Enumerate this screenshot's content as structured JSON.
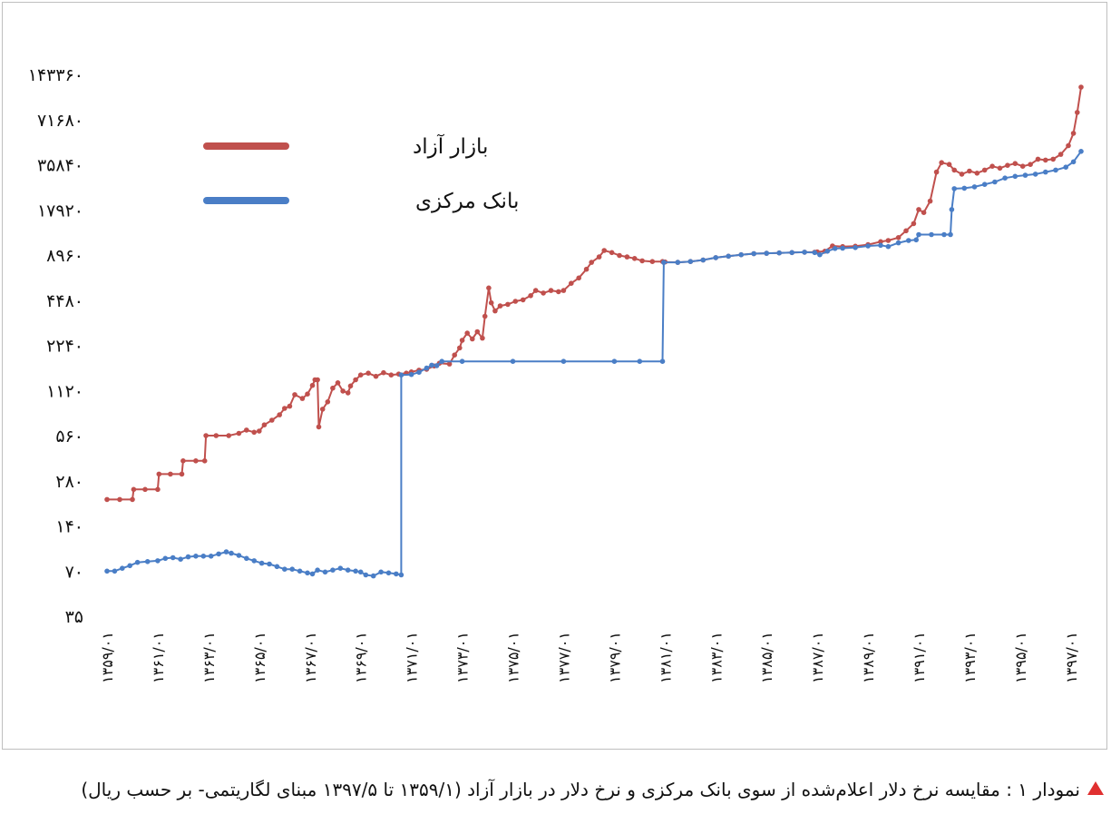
{
  "caption": {
    "text": "نمودار ۱ : مقایسه نرخ دلار اعلام‌شده از سوی بانک مرکزی و نرخ دلار در بازار آزاد (۱۳۵۹/۱ تا ۱۳۹۷/۵ مبنای لگاریتمی- بر حسب ریال)",
    "marker_color": "#e03030"
  },
  "chart_data": {
    "type": "line",
    "title": "",
    "xlabel": "",
    "ylabel": "",
    "y_scale": "log2",
    "ylim": [
      35,
      143360
    ],
    "y_ticks": [
      35,
      70,
      140,
      280,
      560,
      1120,
      2240,
      4480,
      8960,
      17920,
      35840,
      71680,
      143360
    ],
    "y_tick_labels": [
      "۳۵",
      "۷۰",
      "۱۴۰",
      "۲۸۰",
      "۵۶۰",
      "۱۱۲۰",
      "۲۲۴۰",
      "۴۴۸۰",
      "۸۹۶۰",
      "۱۷۹۲۰",
      "۳۵۸۴۰",
      "۷۱۶۸۰",
      "۱۴۳۳۶۰"
    ],
    "xlim": [
      1359,
      1397.4
    ],
    "x_ticks": [
      1359,
      1361,
      1363,
      1365,
      1367,
      1369,
      1371,
      1373,
      1375,
      1377,
      1379,
      1381,
      1383,
      1385,
      1387,
      1389,
      1391,
      1393,
      1395,
      1397
    ],
    "x_tick_labels": [
      "۱۳۵۹/۰۱",
      "۱۳۶۱/۰۱",
      "۱۳۶۳/۰۱",
      "۱۳۶۵/۰۱",
      "۱۳۶۷/۰۱",
      "۱۳۶۹/۰۱",
      "۱۳۷۱/۰۱",
      "۱۳۷۳/۰۱",
      "۱۳۷۵/۰۱",
      "۱۳۷۷/۰۱",
      "۱۳۷۹/۰۱",
      "۱۳۸۱/۰۱",
      "۱۳۸۳/۰۱",
      "۱۳۸۵/۰۱",
      "۱۳۸۷/۰۱",
      "۱۳۸۹/۰۱",
      "۱۳۹۱/۰۱",
      "۱۳۹۳/۰۱",
      "۱۳۹۵/۰۱",
      "۱۳۹۷/۰۱"
    ],
    "grid": false,
    "legend": "top-left",
    "series": [
      {
        "name": "بازار آزاد",
        "color": "#c0504d",
        "points": [
          [
            1359.0,
            210
          ],
          [
            1359.5,
            210
          ],
          [
            1360.0,
            210
          ],
          [
            1360.05,
            245
          ],
          [
            1360.5,
            245
          ],
          [
            1361.0,
            245
          ],
          [
            1361.05,
            310
          ],
          [
            1361.5,
            310
          ],
          [
            1361.95,
            310
          ],
          [
            1362.0,
            380
          ],
          [
            1362.5,
            380
          ],
          [
            1362.85,
            380
          ],
          [
            1362.9,
            560
          ],
          [
            1363.3,
            560
          ],
          [
            1363.8,
            560
          ],
          [
            1364.2,
            580
          ],
          [
            1364.5,
            610
          ],
          [
            1364.8,
            590
          ],
          [
            1365.0,
            600
          ],
          [
            1365.2,
            660
          ],
          [
            1365.5,
            710
          ],
          [
            1365.8,
            770
          ],
          [
            1366.0,
            850
          ],
          [
            1366.2,
            880
          ],
          [
            1366.4,
            1050
          ],
          [
            1366.7,
            990
          ],
          [
            1366.9,
            1060
          ],
          [
            1367.1,
            1210
          ],
          [
            1367.2,
            1320
          ],
          [
            1367.3,
            1320
          ],
          [
            1367.35,
            640
          ],
          [
            1367.5,
            840
          ],
          [
            1367.7,
            940
          ],
          [
            1367.9,
            1160
          ],
          [
            1368.1,
            1260
          ],
          [
            1368.3,
            1110
          ],
          [
            1368.5,
            1080
          ],
          [
            1368.6,
            1200
          ],
          [
            1368.8,
            1320
          ],
          [
            1369.0,
            1420
          ],
          [
            1369.3,
            1460
          ],
          [
            1369.6,
            1390
          ],
          [
            1369.9,
            1470
          ],
          [
            1370.2,
            1420
          ],
          [
            1370.5,
            1440
          ],
          [
            1370.8,
            1460
          ],
          [
            1371.0,
            1490
          ],
          [
            1371.3,
            1530
          ],
          [
            1371.6,
            1550
          ],
          [
            1371.9,
            1630
          ],
          [
            1372.1,
            1700
          ],
          [
            1372.5,
            1680
          ],
          [
            1372.7,
            1930
          ],
          [
            1372.9,
            2150
          ],
          [
            1373.0,
            2420
          ],
          [
            1373.2,
            2700
          ],
          [
            1373.4,
            2470
          ],
          [
            1373.6,
            2760
          ],
          [
            1373.8,
            2500
          ],
          [
            1373.9,
            3500
          ],
          [
            1374.05,
            5400
          ],
          [
            1374.15,
            4300
          ],
          [
            1374.3,
            3800
          ],
          [
            1374.5,
            4100
          ],
          [
            1374.8,
            4200
          ],
          [
            1375.1,
            4400
          ],
          [
            1375.4,
            4500
          ],
          [
            1375.7,
            4800
          ],
          [
            1375.9,
            5200
          ],
          [
            1376.2,
            5000
          ],
          [
            1376.5,
            5200
          ],
          [
            1376.8,
            5100
          ],
          [
            1377.0,
            5200
          ],
          [
            1377.3,
            5800
          ],
          [
            1377.6,
            6300
          ],
          [
            1377.9,
            7200
          ],
          [
            1378.1,
            8000
          ],
          [
            1378.4,
            8700
          ],
          [
            1378.6,
            9600
          ],
          [
            1378.9,
            9300
          ],
          [
            1379.2,
            8900
          ],
          [
            1379.5,
            8700
          ],
          [
            1379.8,
            8500
          ],
          [
            1380.1,
            8200
          ],
          [
            1380.5,
            8100
          ],
          [
            1380.9,
            8100
          ],
          [
            1381.0,
            8050
          ],
          [
            1381.5,
            8000
          ],
          [
            1382.0,
            8100
          ],
          [
            1382.5,
            8300
          ],
          [
            1383.0,
            8600
          ],
          [
            1383.5,
            8800
          ],
          [
            1384.0,
            9000
          ],
          [
            1384.5,
            9150
          ],
          [
            1385.0,
            9200
          ],
          [
            1385.5,
            9250
          ],
          [
            1386.0,
            9300
          ],
          [
            1386.5,
            9350
          ],
          [
            1386.9,
            9350
          ],
          [
            1387.0,
            9400
          ],
          [
            1387.3,
            9500
          ],
          [
            1387.6,
            10300
          ],
          [
            1388.0,
            10200
          ],
          [
            1388.5,
            10250
          ],
          [
            1389.0,
            10500
          ],
          [
            1389.5,
            11000
          ],
          [
            1389.8,
            11200
          ],
          [
            1390.2,
            11700
          ],
          [
            1390.5,
            13000
          ],
          [
            1390.8,
            14500
          ],
          [
            1391.0,
            18000
          ],
          [
            1391.2,
            17200
          ],
          [
            1391.45,
            20500
          ],
          [
            1391.7,
            32000
          ],
          [
            1391.9,
            37000
          ],
          [
            1392.2,
            36000
          ],
          [
            1392.4,
            33000
          ],
          [
            1392.7,
            31000
          ],
          [
            1393.0,
            32500
          ],
          [
            1393.3,
            31500
          ],
          [
            1393.6,
            33000
          ],
          [
            1393.9,
            35000
          ],
          [
            1394.2,
            34000
          ],
          [
            1394.5,
            35500
          ],
          [
            1394.8,
            36500
          ],
          [
            1395.1,
            35000
          ],
          [
            1395.4,
            36000
          ],
          [
            1395.7,
            39000
          ],
          [
            1396.0,
            38500
          ],
          [
            1396.3,
            39000
          ],
          [
            1396.6,
            42000
          ],
          [
            1396.9,
            48000
          ],
          [
            1397.1,
            58000
          ],
          [
            1397.25,
            80000
          ],
          [
            1397.4,
            118000
          ]
        ]
      },
      {
        "name": "بانک مرکزی",
        "color": "#4a7ec6",
        "points": [
          [
            1359.0,
            70
          ],
          [
            1359.3,
            70
          ],
          [
            1359.6,
            73
          ],
          [
            1359.9,
            76
          ],
          [
            1360.2,
            80
          ],
          [
            1360.6,
            81
          ],
          [
            1361.0,
            82
          ],
          [
            1361.3,
            85
          ],
          [
            1361.6,
            86
          ],
          [
            1361.9,
            84
          ],
          [
            1362.2,
            87
          ],
          [
            1362.5,
            88
          ],
          [
            1362.8,
            88
          ],
          [
            1363.1,
            88
          ],
          [
            1363.4,
            91
          ],
          [
            1363.7,
            94
          ],
          [
            1363.9,
            92
          ],
          [
            1364.2,
            89
          ],
          [
            1364.5,
            85
          ],
          [
            1364.8,
            82
          ],
          [
            1365.1,
            79
          ],
          [
            1365.4,
            78
          ],
          [
            1365.7,
            75
          ],
          [
            1366.0,
            72
          ],
          [
            1366.3,
            72
          ],
          [
            1366.6,
            70
          ],
          [
            1366.9,
            68
          ],
          [
            1367.1,
            67
          ],
          [
            1367.3,
            71
          ],
          [
            1367.6,
            69
          ],
          [
            1367.9,
            71
          ],
          [
            1368.2,
            73
          ],
          [
            1368.5,
            71
          ],
          [
            1368.8,
            70
          ],
          [
            1369.0,
            69
          ],
          [
            1369.2,
            66
          ],
          [
            1369.5,
            65
          ],
          [
            1369.8,
            69
          ],
          [
            1370.1,
            68
          ],
          [
            1370.4,
            67
          ],
          [
            1370.6,
            66
          ],
          [
            1370.6,
            1420
          ],
          [
            1371.0,
            1430
          ],
          [
            1371.3,
            1480
          ],
          [
            1371.6,
            1580
          ],
          [
            1371.8,
            1650
          ],
          [
            1372.0,
            1640
          ],
          [
            1372.2,
            1750
          ],
          [
            1373.0,
            1750
          ],
          [
            1375.0,
            1750
          ],
          [
            1377.0,
            1750
          ],
          [
            1379.0,
            1750
          ],
          [
            1380.0,
            1750
          ],
          [
            1380.9,
            1750
          ],
          [
            1380.95,
            8000
          ],
          [
            1381.5,
            8000
          ],
          [
            1382.0,
            8100
          ],
          [
            1382.5,
            8300
          ],
          [
            1383.0,
            8600
          ],
          [
            1383.5,
            8800
          ],
          [
            1384.0,
            9000
          ],
          [
            1384.5,
            9150
          ],
          [
            1385.0,
            9200
          ],
          [
            1385.5,
            9250
          ],
          [
            1386.0,
            9300
          ],
          [
            1386.5,
            9350
          ],
          [
            1386.9,
            9300
          ],
          [
            1387.1,
            9000
          ],
          [
            1387.4,
            9500
          ],
          [
            1387.7,
            9900
          ],
          [
            1388.0,
            9950
          ],
          [
            1388.5,
            10050
          ],
          [
            1389.0,
            10300
          ],
          [
            1389.5,
            10400
          ],
          [
            1389.8,
            10200
          ],
          [
            1390.2,
            10800
          ],
          [
            1390.6,
            11200
          ],
          [
            1390.9,
            11300
          ],
          [
            1391.0,
            12260
          ],
          [
            1391.5,
            12260
          ],
          [
            1392.0,
            12260
          ],
          [
            1392.25,
            12260
          ],
          [
            1392.3,
            18000
          ],
          [
            1392.4,
            24800
          ],
          [
            1392.8,
            25000
          ],
          [
            1393.2,
            25500
          ],
          [
            1393.6,
            26500
          ],
          [
            1394.0,
            27500
          ],
          [
            1394.4,
            29200
          ],
          [
            1394.8,
            30000
          ],
          [
            1395.2,
            30500
          ],
          [
            1395.6,
            31000
          ],
          [
            1396.0,
            32000
          ],
          [
            1396.4,
            33000
          ],
          [
            1396.8,
            34500
          ],
          [
            1397.1,
            37500
          ],
          [
            1397.4,
            44000
          ]
        ]
      }
    ]
  }
}
